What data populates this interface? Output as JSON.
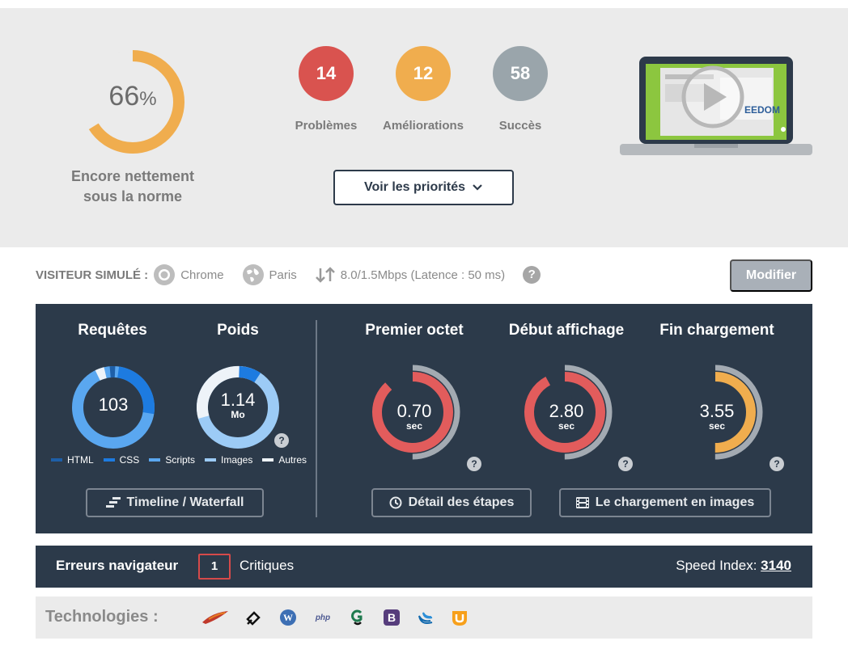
{
  "score": {
    "value": "66",
    "unit": "%",
    "level": 0.66,
    "caption_line1": "Encore nettement",
    "caption_line2": "sous la norme",
    "color": "#f0ad4e"
  },
  "stats": [
    {
      "value": "14",
      "label": "Problèmes",
      "color": "#d9534f"
    },
    {
      "value": "12",
      "label": "Améliorations",
      "color": "#f0ad4e"
    },
    {
      "value": "58",
      "label": "Succès",
      "color": "#9aa5ab"
    }
  ],
  "priorities_button": "Voir les priorités",
  "video_thumb": {
    "brand": "EEDOM",
    "icon": "play-icon"
  },
  "visitor": {
    "title": "VISITEUR SIMULÉ :",
    "browser": "Chrome",
    "location": "Paris",
    "connection": "8.0/1.5Mbps (Latence : 50 ms)",
    "help": "?",
    "modify_button": "Modifier"
  },
  "metrics": {
    "requests": {
      "title": "Requêtes",
      "value": "103"
    },
    "weight": {
      "title": "Poids",
      "value": "1.14",
      "unit": "Mo"
    },
    "legend": [
      {
        "label": "HTML",
        "color": "#1e5fa8"
      },
      {
        "label": "CSS",
        "color": "#1d7be0"
      },
      {
        "label": "Scripts",
        "color": "#5aa7f0"
      },
      {
        "label": "Images",
        "color": "#9ccbf6"
      },
      {
        "label": "Autres",
        "color": "#eef3f8"
      }
    ],
    "timings": [
      {
        "title": "Premier octet",
        "value": "0.70",
        "unit": "sec",
        "color": "#e25c5c",
        "fraction": 0.88
      },
      {
        "title": "Début affichage",
        "value": "2.80",
        "unit": "sec",
        "color": "#e25c5c",
        "fraction": 0.92
      },
      {
        "title": "Fin chargement",
        "value": "3.55",
        "unit": "sec",
        "color": "#f0ad4e",
        "fraction": 0.5
      }
    ],
    "timeline_button": "Timeline / Waterfall",
    "steps_button": "Détail des étapes",
    "images_button": "Le chargement en images",
    "help": "?"
  },
  "errors": {
    "title": "Erreurs navigateur",
    "count": "1",
    "label": "Critiques",
    "speed_index_label": "Speed Index:",
    "speed_index_value": "3140"
  },
  "technologies": {
    "title": "Technologies :",
    "icons": [
      "apache-feather-icon",
      "jeedom-icon",
      "wordpress-icon",
      "php-icon",
      "gsap-icon",
      "bootstrap-icon",
      "jquery-icon",
      "uikit-icon"
    ]
  }
}
